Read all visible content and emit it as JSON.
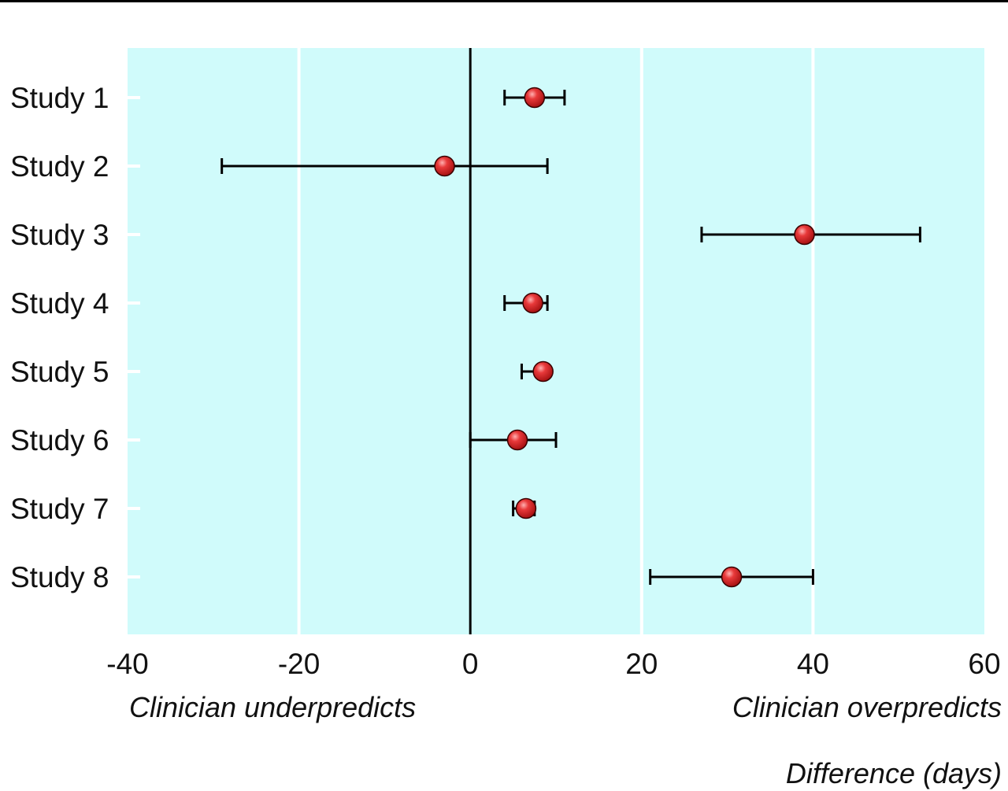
{
  "chart_data": {
    "type": "forest",
    "studies": [
      {
        "label": "Study 1",
        "estimate": 7.5,
        "lower": 4,
        "upper": 11
      },
      {
        "label": "Study 2",
        "estimate": -3,
        "lower": -29,
        "upper": 9
      },
      {
        "label": "Study 3",
        "estimate": 39,
        "lower": 27,
        "upper": 52.5
      },
      {
        "label": "Study 4",
        "estimate": 7.3,
        "lower": 4,
        "upper": 9
      },
      {
        "label": "Study 5",
        "estimate": 8.5,
        "lower": 6,
        "upper": 8.5
      },
      {
        "label": "Study 6",
        "estimate": 5.5,
        "lower": 0,
        "upper": 10
      },
      {
        "label": "Study 7",
        "estimate": 6.5,
        "lower": 5,
        "upper": 7.5
      },
      {
        "label": "Study 8",
        "estimate": 30.5,
        "lower": 21,
        "upper": 40
      }
    ],
    "xlim": [
      -40,
      60
    ],
    "xticks": [
      "-40",
      "-20",
      "0",
      "20",
      "40",
      "60"
    ],
    "xtick_values": [
      -40,
      -20,
      0,
      20,
      40,
      60
    ],
    "xlabel": "Difference (days)",
    "annotations": {
      "left": "Clinician underpredicts",
      "right": "Clinician overpredicts"
    },
    "reference_line": 0,
    "grid": true,
    "colors": {
      "background": "#d0fbfb",
      "gridline": "#ffffff",
      "marker": "#e02a2a",
      "marker_edge": "#3a0000",
      "line": "#000000"
    }
  }
}
